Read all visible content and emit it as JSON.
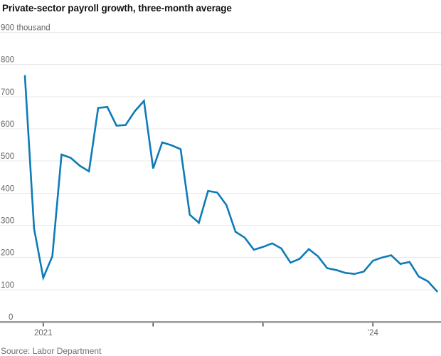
{
  "chart_data": {
    "type": "line",
    "title": "Private-sector payroll growth, three-month average",
    "source": "Source: Labor Department",
    "series_name": "Private-sector payroll growth, three-month average (thousands)",
    "unit_top_label": "900 thousand",
    "x": [
      "Nov 2020",
      "Dec 2020",
      "Jan 2021",
      "Feb 2021",
      "Mar 2021",
      "Apr 2021",
      "May 2021",
      "Jun 2021",
      "Jul 2021",
      "Aug 2021",
      "Sep 2021",
      "Oct 2021",
      "Nov 2021",
      "Dec 2021",
      "Jan 2022",
      "Feb 2022",
      "Mar 2022",
      "Apr 2022",
      "May 2022",
      "Jun 2022",
      "Jul 2022",
      "Aug 2022",
      "Sep 2022",
      "Oct 2022",
      "Nov 2022",
      "Dec 2022",
      "Jan 2023",
      "Feb 2023",
      "Mar 2023",
      "Apr 2023",
      "May 2023",
      "Jun 2023",
      "Jul 2023",
      "Aug 2023",
      "Sep 2023",
      "Oct 2023",
      "Nov 2023",
      "Dec 2023",
      "Jan 2024",
      "Feb 2024",
      "Mar 2024",
      "Apr 2024",
      "May 2024",
      "Jun 2024",
      "Jul 2024",
      "Aug 2024"
    ],
    "values": [
      765,
      290,
      137,
      204,
      520,
      510,
      485,
      468,
      665,
      668,
      610,
      612,
      655,
      687,
      477,
      558,
      549,
      537,
      333,
      308,
      407,
      402,
      363,
      280,
      262,
      224,
      233,
      244,
      228,
      184,
      196,
      226,
      204,
      167,
      161,
      152,
      149,
      156,
      190,
      200,
      207,
      180,
      186,
      141,
      126,
      95
    ],
    "ylim": [
      0,
      900
    ],
    "ytick_step": 100,
    "yticks": [
      0,
      100,
      200,
      300,
      400,
      500,
      600,
      700,
      800,
      900
    ],
    "xticks": [
      {
        "index": 2,
        "label": "2021"
      },
      {
        "index": 14,
        "label": ""
      },
      {
        "index": 26,
        "label": ""
      },
      {
        "index": 38,
        "label": "’24"
      }
    ],
    "grid": true,
    "legend": "none",
    "colors": {
      "line": "#0e7bb8",
      "grid": "#e9e9e9",
      "axis": "#9b9b9b",
      "tick": "#3c3c3c",
      "axis_label": "#666666",
      "title": "#121212",
      "source_text": "#707070"
    }
  }
}
